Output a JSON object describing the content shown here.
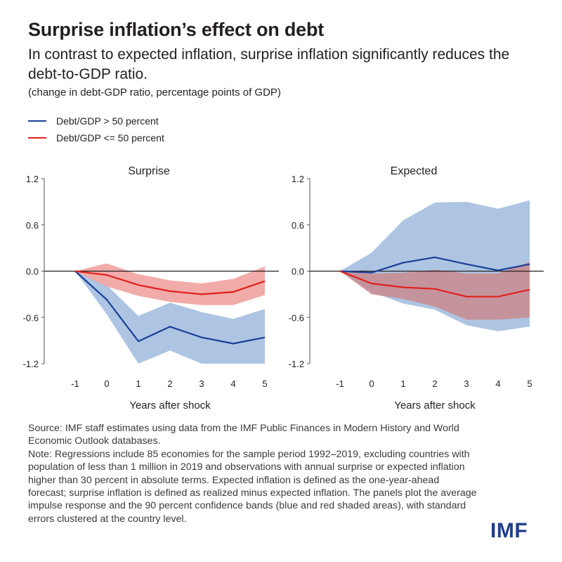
{
  "header": {
    "title": "Surprise inflation’s effect on debt",
    "subtitle": "In contrast to expected inflation, surprise inflation significantly reduces the debt-to-GDP ratio.",
    "units": "(change in debt-GDP ratio, percentage points of GDP)"
  },
  "legend": [
    {
      "label": "Debt/GDP > 50 percent",
      "color": "#1a3f99"
    },
    {
      "label": "Debt/GDP <= 50 percent",
      "color": "#e02020"
    }
  ],
  "chart_data": [
    {
      "type": "line",
      "title": "Surprise",
      "xlabel": "Years after shock",
      "x": [
        -1,
        0,
        1,
        2,
        3,
        4,
        5
      ],
      "ylim": [
        -1.2,
        1.2
      ],
      "yticks": [
        "1.2",
        "0.6",
        "0.0",
        "-0.6",
        "-1.2"
      ],
      "series": [
        {
          "name": "Debt/GDP > 50 percent",
          "color": "#1a3f99",
          "band_color": "#a9c2e0",
          "values": [
            0.0,
            -0.37,
            -0.91,
            -0.72,
            -0.86,
            -0.94,
            -0.86
          ],
          "lower": [
            0.0,
            -0.56,
            -1.2,
            -1.03,
            -1.2,
            -1.2,
            -1.2
          ],
          "upper": [
            0.0,
            -0.18,
            -0.58,
            -0.41,
            -0.53,
            -0.62,
            -0.49
          ]
        },
        {
          "name": "Debt/GDP <= 50 percent",
          "color": "#e02020",
          "band_color": "#f0a7a3",
          "values": [
            0.0,
            -0.05,
            -0.18,
            -0.26,
            -0.3,
            -0.27,
            -0.13
          ],
          "lower": [
            0.0,
            -0.2,
            -0.32,
            -0.4,
            -0.44,
            -0.44,
            -0.31
          ],
          "upper": [
            0.0,
            0.1,
            -0.04,
            -0.12,
            -0.16,
            -0.1,
            0.06
          ]
        }
      ]
    },
    {
      "type": "line",
      "title": "Expected",
      "xlabel": "Years after shock",
      "x": [
        -1,
        0,
        1,
        2,
        3,
        4,
        5
      ],
      "ylim": [
        -1.2,
        1.2
      ],
      "yticks": [
        "1.2",
        "0.6",
        "0.0",
        "-0.6",
        "-1.2"
      ],
      "series": [
        {
          "name": "Debt/GDP > 50 percent",
          "color": "#1a3f99",
          "band_color": "#a9c2e0",
          "values": [
            0.0,
            -0.02,
            0.11,
            0.18,
            0.09,
            0.01,
            0.09
          ],
          "lower": [
            0.0,
            -0.27,
            -0.42,
            -0.5,
            -0.7,
            -0.78,
            -0.72
          ],
          "upper": [
            0.0,
            0.24,
            0.66,
            0.89,
            0.9,
            0.81,
            0.92
          ]
        },
        {
          "name": "Debt/GDP <= 50 percent",
          "color": "#e02020",
          "band_color": "#c98a8e",
          "values": [
            0.0,
            -0.16,
            -0.21,
            -0.23,
            -0.33,
            -0.33,
            -0.24
          ],
          "lower": [
            0.0,
            -0.3,
            -0.36,
            -0.46,
            -0.63,
            -0.63,
            -0.6
          ],
          "upper": [
            0.0,
            -0.03,
            -0.02,
            0.02,
            -0.03,
            -0.03,
            0.12
          ]
        }
      ]
    }
  ],
  "notes": {
    "source": "Source: IMF staff estimates using data from the IMF Public Finances in Modern History and World Economic Outlook databases.",
    "note": "Note: Regressions include 85 economies for the sample period 1992–2019, excluding countries with population of less than 1 million in 2019 and observations with annual surprise or expected inflation higher than 30 percent in absolute terms. Expected inflation is defined as the one-year-ahead forecast; surprise inflation is defined as realized minus expected inflation. The panels plot the average impulse response and the 90 percent confidence bands (blue and red shaded areas), with standard errors clustered at the country level."
  },
  "logo": "IMF"
}
